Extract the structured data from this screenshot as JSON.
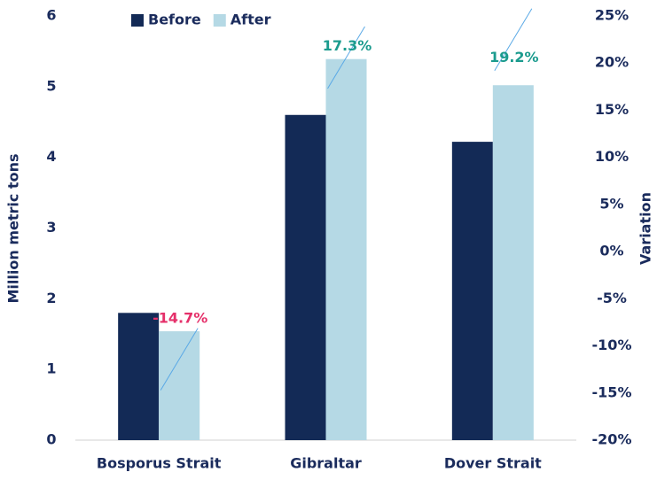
{
  "chart_data": {
    "type": "bar",
    "categories": [
      "Bosporus Strait",
      "Gibraltar",
      "Dover Strait"
    ],
    "series": [
      {
        "name": "Before",
        "color": "#132a56",
        "values": [
          1.8,
          4.6,
          4.22
        ]
      },
      {
        "name": "After",
        "color": "#b5d9e5",
        "values": [
          1.54,
          5.39,
          5.02
        ]
      },
      {
        "name": "Variation",
        "color": "#5aa9e6",
        "axis": "y2",
        "values": [
          -14.7,
          17.3,
          19.2
        ],
        "value_labels": [
          "-14.7%",
          "17.3%",
          "19.2%"
        ],
        "label_colors": [
          "#e5306a",
          "#1b9b8e",
          "#1b9b8e"
        ]
      }
    ],
    "ylabel": "Million metric tons",
    "y2label": "Variation",
    "ylim": [
      0,
      6
    ],
    "yticks": [
      0,
      1,
      2,
      3,
      4,
      5,
      6
    ],
    "y2lim": [
      -20,
      25
    ],
    "y2ticks": [
      {
        "value": -20,
        "label": "-20%"
      },
      {
        "value": -15,
        "label": "-15%"
      },
      {
        "value": -10,
        "label": "-10%"
      },
      {
        "value": -5,
        "label": "-5%"
      },
      {
        "value": 0,
        "label": "0%"
      },
      {
        "value": 5,
        "label": "5%"
      },
      {
        "value": 10,
        "label": "10%"
      },
      {
        "value": 15,
        "label": "15%"
      },
      {
        "value": 20,
        "label": "20%"
      },
      {
        "value": 25,
        "label": "25%"
      }
    ],
    "legend": "top"
  }
}
